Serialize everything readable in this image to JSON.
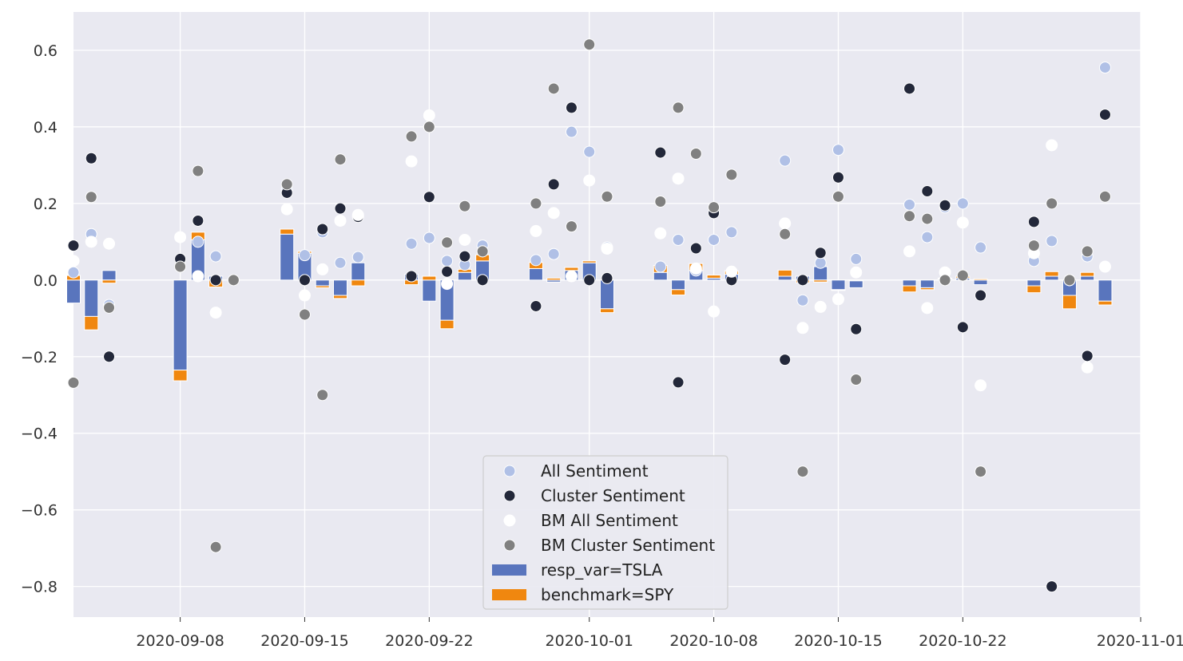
{
  "chart_data": {
    "type": "scatter",
    "title": "",
    "xlabel": "",
    "ylabel": "",
    "x_range": [
      "2020-09-02",
      "2020-11-01"
    ],
    "ylim": [
      -0.88,
      0.7
    ],
    "grid": true,
    "legend_placement": "lower-center",
    "x_ticks": [
      "2020-09-08",
      "2020-09-15",
      "2020-09-22",
      "2020-10-01",
      "2020-10-08",
      "2020-10-15",
      "2020-10-22",
      "2020-11-01"
    ],
    "y_ticks": [
      0.6,
      0.4,
      0.2,
      0.0,
      -0.2,
      -0.4,
      -0.6,
      -0.8
    ],
    "y_tick_labels": [
      "0.6",
      "0.4",
      "0.2",
      "0.0",
      "−0.2",
      "−0.4",
      "−0.6",
      "−0.8"
    ],
    "bar_series": [
      {
        "name": "resp_var=TSLA",
        "color": "#5975bd",
        "points": [
          [
            "2020-09-02",
            -0.06
          ],
          [
            "2020-09-03",
            -0.095
          ],
          [
            "2020-09-04",
            0.025
          ],
          [
            "2020-09-08",
            -0.235
          ],
          [
            "2020-09-09",
            0.105
          ],
          [
            "2020-09-10",
            0.01
          ],
          [
            "2020-09-14",
            0.12
          ],
          [
            "2020-09-15",
            0.07
          ],
          [
            "2020-09-16",
            -0.015
          ],
          [
            "2020-09-17",
            -0.04
          ],
          [
            "2020-09-18",
            0.045
          ],
          [
            "2020-09-21",
            0.015
          ],
          [
            "2020-09-22",
            -0.055
          ],
          [
            "2020-09-23",
            -0.105
          ],
          [
            "2020-09-24",
            0.02
          ],
          [
            "2020-09-25",
            0.05
          ],
          [
            "2020-09-28",
            0.03
          ],
          [
            "2020-09-29",
            -0.005
          ],
          [
            "2020-09-30",
            0.025
          ],
          [
            "2020-10-01",
            0.045
          ],
          [
            "2020-10-02",
            -0.075
          ],
          [
            "2020-10-05",
            0.02
          ],
          [
            "2020-10-06",
            -0.025
          ],
          [
            "2020-10-07",
            0.025
          ],
          [
            "2020-10-08",
            0.005
          ],
          [
            "2020-10-09",
            0.015
          ],
          [
            "2020-10-12",
            0.01
          ],
          [
            "2020-10-13",
            0.01
          ],
          [
            "2020-10-14",
            0.035
          ],
          [
            "2020-10-15",
            -0.025
          ],
          [
            "2020-10-16",
            -0.02
          ],
          [
            "2020-10-19",
            -0.015
          ],
          [
            "2020-10-20",
            -0.02
          ],
          [
            "2020-10-21",
            0.005
          ],
          [
            "2020-10-22",
            0.005
          ],
          [
            "2020-10-23",
            -0.012
          ],
          [
            "2020-10-26",
            -0.015
          ],
          [
            "2020-10-27",
            0.01
          ],
          [
            "2020-10-28",
            -0.04
          ],
          [
            "2020-10-29",
            0.01
          ],
          [
            "2020-10-30",
            -0.055
          ]
        ]
      },
      {
        "name": "benchmark=SPY",
        "color": "#f0870f",
        "points": [
          [
            "2020-09-02",
            0.012
          ],
          [
            "2020-09-03",
            -0.035
          ],
          [
            "2020-09-04",
            -0.008
          ],
          [
            "2020-09-08",
            -0.028
          ],
          [
            "2020-09-09",
            0.02
          ],
          [
            "2020-09-10",
            -0.018
          ],
          [
            "2020-09-14",
            0.013
          ],
          [
            "2020-09-15",
            0.005
          ],
          [
            "2020-09-16",
            -0.005
          ],
          [
            "2020-09-17",
            -0.008
          ],
          [
            "2020-09-18",
            -0.015
          ],
          [
            "2020-09-21",
            -0.012
          ],
          [
            "2020-09-22",
            0.01
          ],
          [
            "2020-09-23",
            -0.022
          ],
          [
            "2020-09-24",
            0.008
          ],
          [
            "2020-09-25",
            0.016
          ],
          [
            "2020-09-28",
            0.016
          ],
          [
            "2020-09-29",
            0.005
          ],
          [
            "2020-09-30",
            0.008
          ],
          [
            "2020-10-01",
            0.005
          ],
          [
            "2020-10-02",
            -0.01
          ],
          [
            "2020-10-05",
            0.018
          ],
          [
            "2020-10-06",
            -0.014
          ],
          [
            "2020-10-07",
            0.018
          ],
          [
            "2020-10-08",
            0.008
          ],
          [
            "2020-10-09",
            0.009
          ],
          [
            "2020-10-12",
            0.016
          ],
          [
            "2020-10-13",
            -0.007
          ],
          [
            "2020-10-14",
            -0.005
          ],
          [
            "2020-10-15",
            -0.002
          ],
          [
            "2020-10-16",
            0.0
          ],
          [
            "2020-10-19",
            -0.016
          ],
          [
            "2020-10-20",
            -0.005
          ],
          [
            "2020-10-21",
            0.0
          ],
          [
            "2020-10-22",
            0.005
          ],
          [
            "2020-10-23",
            0.003
          ],
          [
            "2020-10-26",
            -0.018
          ],
          [
            "2020-10-27",
            0.012
          ],
          [
            "2020-10-28",
            -0.035
          ],
          [
            "2020-10-29",
            0.01
          ],
          [
            "2020-10-30",
            -0.01
          ]
        ]
      }
    ],
    "scatter_series": [
      {
        "name": "All Sentiment",
        "color": "#b0c0e6",
        "points": [
          [
            "2020-09-02",
            0.02
          ],
          [
            "2020-09-03",
            0.12
          ],
          [
            "2020-09-04",
            -0.065
          ],
          [
            "2020-09-08",
            0.035
          ],
          [
            "2020-09-09",
            0.1
          ],
          [
            "2020-09-10",
            0.062
          ],
          [
            "2020-09-14",
            0.235
          ],
          [
            "2020-09-15",
            0.065
          ],
          [
            "2020-09-16",
            0.125
          ],
          [
            "2020-09-17",
            0.045
          ],
          [
            "2020-09-18",
            0.06
          ],
          [
            "2020-09-21",
            0.095
          ],
          [
            "2020-09-22",
            0.11
          ],
          [
            "2020-09-23",
            0.05
          ],
          [
            "2020-09-24",
            0.04
          ],
          [
            "2020-09-25",
            0.09
          ],
          [
            "2020-09-28",
            0.052
          ],
          [
            "2020-09-29",
            0.068
          ],
          [
            "2020-09-30",
            0.387
          ],
          [
            "2020-10-01",
            0.335
          ],
          [
            "2020-10-02",
            0.085
          ],
          [
            "2020-10-05",
            0.035
          ],
          [
            "2020-10-06",
            0.105
          ],
          [
            "2020-10-07",
            0.025
          ],
          [
            "2020-10-08",
            0.105
          ],
          [
            "2020-10-09",
            0.125
          ],
          [
            "2020-10-12",
            0.312
          ],
          [
            "2020-10-13",
            -0.053
          ],
          [
            "2020-10-14",
            0.045
          ],
          [
            "2020-10-15",
            0.34
          ],
          [
            "2020-10-16",
            0.055
          ],
          [
            "2020-10-19",
            0.197
          ],
          [
            "2020-10-20",
            0.112
          ],
          [
            "2020-10-21",
            0.19
          ],
          [
            "2020-10-22",
            0.2
          ],
          [
            "2020-10-23",
            0.085
          ],
          [
            "2020-10-26",
            0.05
          ],
          [
            "2020-10-27",
            0.102
          ],
          [
            "2020-10-28",
            0.0
          ],
          [
            "2020-10-29",
            0.062
          ],
          [
            "2020-10-30",
            0.555
          ]
        ]
      },
      {
        "name": "Cluster Sentiment",
        "color": "#23283a",
        "points": [
          [
            "2020-09-02",
            0.09
          ],
          [
            "2020-09-03",
            0.318
          ],
          [
            "2020-09-04",
            -0.2
          ],
          [
            "2020-09-08",
            0.055
          ],
          [
            "2020-09-09",
            0.155
          ],
          [
            "2020-09-10",
            0.0
          ],
          [
            "2020-09-14",
            0.228
          ],
          [
            "2020-09-15",
            0.0
          ],
          [
            "2020-09-16",
            0.133
          ],
          [
            "2020-09-17",
            0.187
          ],
          [
            "2020-09-18",
            0.165
          ],
          [
            "2020-09-21",
            0.01
          ],
          [
            "2020-09-22",
            0.217
          ],
          [
            "2020-09-23",
            0.022
          ],
          [
            "2020-09-24",
            0.062
          ],
          [
            "2020-09-25",
            0.0
          ],
          [
            "2020-09-28",
            -0.068
          ],
          [
            "2020-09-29",
            0.25
          ],
          [
            "2020-09-30",
            0.45
          ],
          [
            "2020-10-01",
            0.0
          ],
          [
            "2020-10-02",
            0.005
          ],
          [
            "2020-10-05",
            0.333
          ],
          [
            "2020-10-06",
            -0.267
          ],
          [
            "2020-10-07",
            0.083
          ],
          [
            "2020-10-08",
            0.175
          ],
          [
            "2020-10-09",
            0.0
          ],
          [
            "2020-10-12",
            -0.208
          ],
          [
            "2020-10-13",
            0.0
          ],
          [
            "2020-10-14",
            0.071
          ],
          [
            "2020-10-15",
            0.268
          ],
          [
            "2020-10-16",
            -0.128
          ],
          [
            "2020-10-19",
            0.5
          ],
          [
            "2020-10-20",
            0.232
          ],
          [
            "2020-10-21",
            0.195
          ],
          [
            "2020-10-22",
            -0.123
          ],
          [
            "2020-10-23",
            -0.04
          ],
          [
            "2020-10-26",
            0.152
          ],
          [
            "2020-10-27",
            -0.8
          ],
          [
            "2020-10-28",
            0.0
          ],
          [
            "2020-10-29",
            -0.198
          ],
          [
            "2020-10-30",
            0.432
          ]
        ]
      },
      {
        "name": "BM All Sentiment",
        "color": "#ffffff",
        "points": [
          [
            "2020-09-02",
            0.05
          ],
          [
            "2020-09-03",
            0.1
          ],
          [
            "2020-09-04",
            0.095
          ],
          [
            "2020-09-08",
            0.112
          ],
          [
            "2020-09-09",
            0.01
          ],
          [
            "2020-09-10",
            -0.085
          ],
          [
            "2020-09-14",
            0.185
          ],
          [
            "2020-09-15",
            -0.04
          ],
          [
            "2020-09-16",
            0.028
          ],
          [
            "2020-09-17",
            0.155
          ],
          [
            "2020-09-18",
            0.17
          ],
          [
            "2020-09-21",
            0.31
          ],
          [
            "2020-09-22",
            0.43
          ],
          [
            "2020-09-23",
            -0.01
          ],
          [
            "2020-09-24",
            0.105
          ],
          [
            "2020-09-25",
            0.075
          ],
          [
            "2020-09-28",
            0.128
          ],
          [
            "2020-09-29",
            0.175
          ],
          [
            "2020-09-30",
            0.01
          ],
          [
            "2020-10-01",
            0.26
          ],
          [
            "2020-10-02",
            0.082
          ],
          [
            "2020-10-05",
            0.122
          ],
          [
            "2020-10-06",
            0.265
          ],
          [
            "2020-10-07",
            0.03
          ],
          [
            "2020-10-08",
            -0.082
          ],
          [
            "2020-10-09",
            0.022
          ],
          [
            "2020-10-12",
            0.148
          ],
          [
            "2020-10-13",
            -0.125
          ],
          [
            "2020-10-14",
            -0.07
          ],
          [
            "2020-10-15",
            -0.05
          ],
          [
            "2020-10-16",
            0.02
          ],
          [
            "2020-10-19",
            0.075
          ],
          [
            "2020-10-20",
            -0.073
          ],
          [
            "2020-10-21",
            0.02
          ],
          [
            "2020-10-22",
            0.15
          ],
          [
            "2020-10-23",
            -0.275
          ],
          [
            "2020-10-26",
            0.07
          ],
          [
            "2020-10-27",
            0.352
          ],
          [
            "2020-10-28",
            0.0
          ],
          [
            "2020-10-29",
            -0.228
          ],
          [
            "2020-10-30",
            0.035
          ]
        ]
      },
      {
        "name": "BM Cluster Sentiment",
        "color": "#808080",
        "points": [
          [
            "2020-09-02",
            -0.268
          ],
          [
            "2020-09-03",
            0.217
          ],
          [
            "2020-09-04",
            -0.072
          ],
          [
            "2020-09-08",
            0.035
          ],
          [
            "2020-09-09",
            0.285
          ],
          [
            "2020-09-10",
            -0.697
          ],
          [
            "2020-09-11",
            0.0
          ],
          [
            "2020-09-14",
            0.25
          ],
          [
            "2020-09-15",
            -0.09
          ],
          [
            "2020-09-16",
            -0.3
          ],
          [
            "2020-09-17",
            0.315
          ],
          [
            "2020-09-21",
            0.375
          ],
          [
            "2020-09-22",
            0.4
          ],
          [
            "2020-09-23",
            0.098
          ],
          [
            "2020-09-24",
            0.193
          ],
          [
            "2020-09-25",
            0.075
          ],
          [
            "2020-09-28",
            0.2
          ],
          [
            "2020-09-29",
            0.5
          ],
          [
            "2020-09-30",
            0.14
          ],
          [
            "2020-10-01",
            0.615
          ],
          [
            "2020-10-02",
            0.218
          ],
          [
            "2020-10-05",
            0.205
          ],
          [
            "2020-10-06",
            0.45
          ],
          [
            "2020-10-07",
            0.33
          ],
          [
            "2020-10-08",
            0.19
          ],
          [
            "2020-10-09",
            0.275
          ],
          [
            "2020-10-12",
            0.12
          ],
          [
            "2020-10-13",
            -0.5
          ],
          [
            "2020-10-15",
            0.218
          ],
          [
            "2020-10-16",
            -0.26
          ],
          [
            "2020-10-19",
            0.167
          ],
          [
            "2020-10-20",
            0.16
          ],
          [
            "2020-10-21",
            0.0
          ],
          [
            "2020-10-22",
            0.012
          ],
          [
            "2020-10-23",
            -0.5
          ],
          [
            "2020-10-26",
            0.09
          ],
          [
            "2020-10-27",
            0.2
          ],
          [
            "2020-10-28",
            0.0
          ],
          [
            "2020-10-29",
            0.075
          ],
          [
            "2020-10-30",
            0.218
          ]
        ]
      }
    ],
    "legend": [
      {
        "label": "All Sentiment",
        "kind": "marker",
        "color": "#b0c0e6"
      },
      {
        "label": "Cluster Sentiment",
        "kind": "marker",
        "color": "#23283a"
      },
      {
        "label": "BM All Sentiment",
        "kind": "marker",
        "color": "#ffffff"
      },
      {
        "label": "BM Cluster Sentiment",
        "kind": "marker",
        "color": "#808080"
      },
      {
        "label": "resp_var=TSLA",
        "kind": "patch",
        "color": "#5975bd"
      },
      {
        "label": "benchmark=SPY",
        "kind": "patch",
        "color": "#f0870f"
      }
    ]
  },
  "colors": {
    "axes_background": "#e9e9f1",
    "grid": "#ffffff"
  }
}
